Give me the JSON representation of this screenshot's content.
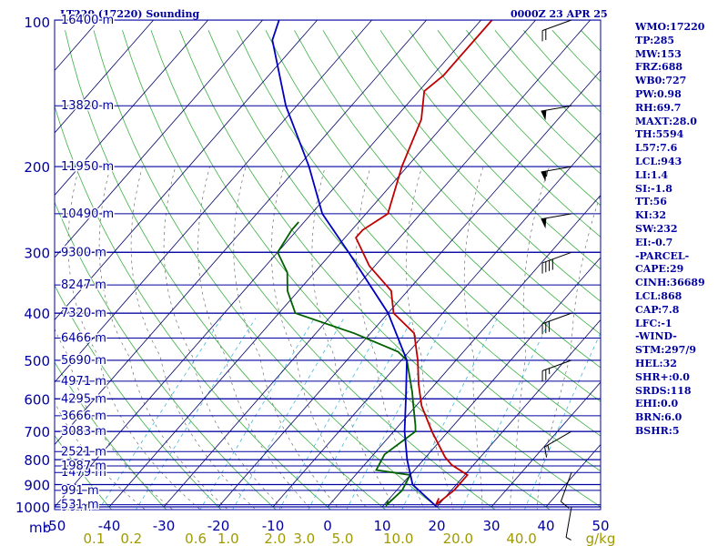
{
  "header": {
    "station": "LT220 (17220) Sounding",
    "time": "0000Z 23 APR 25"
  },
  "stats": [
    "WMO:17220",
    "TP:285",
    "MW:153",
    "FRZ:688",
    "WB0:727",
    "PW:0.98",
    "RH:69.7",
    "MAXT:28.0",
    "TH:5594",
    "L57:7.6",
    "LCL:943",
    "LI:1.4",
    "SI:-1.8",
    "TT:56",
    "KI:32",
    "SW:232",
    "EI:-0.7",
    "-PARCEL-",
    "CAPE:29",
    "CINH:36689",
    "LCL:868",
    "CAP:7.8",
    "LFC:-1",
    "-WIND-",
    "STM:297/9",
    "HEL:32",
    "SHR+:0.0",
    "SRDS:118",
    "EHI:0.0",
    "BRN:6.0",
    "BSHR:5"
  ],
  "colors": {
    "temperature": "#c00000",
    "dewpoint": "#006000",
    "parcel": "#0000c0",
    "isobar": "#0000a0",
    "isotherm": "#00006a",
    "dry_adiabat": "#3cb043",
    "mixing_ratio": "#40b8e0",
    "moist_adiabat": "#707070",
    "axis_text": "#0000a0",
    "mixing_ratio_text": "#a09a00"
  },
  "chart_data": {
    "type": "line",
    "chart_kind": "skew-T log-P sounding",
    "pressure_axis": {
      "unit_label": "mb",
      "scale": "log",
      "range": [
        1000,
        100
      ],
      "ticks": [
        100,
        200,
        300,
        400,
        500,
        600,
        700,
        800,
        900,
        1000
      ]
    },
    "temperature_axis": {
      "range": [
        -50,
        50
      ],
      "tick_labels": [
        "-50",
        "-40",
        "-30",
        "-20",
        "-10",
        "0",
        "10",
        "20",
        "30",
        "40",
        "50"
      ]
    },
    "mixing_ratio_axis": {
      "unit_label": "g/kg",
      "tick_labels": [
        "0.1",
        "0.2",
        "0.6",
        "1.0",
        "2.0",
        "3.0",
        "5.0",
        "10.0",
        "20.0",
        "40.0"
      ],
      "values": [
        0.1,
        0.2,
        0.6,
        1.0,
        2.0,
        3.0,
        5.0,
        10.0,
        20.0,
        40.0
      ]
    },
    "height_labels": [
      {
        "p": 1000,
        "label": "96 m"
      },
      {
        "p": 990,
        "label": "531 m"
      },
      {
        "p": 925,
        "label": "991 m"
      },
      {
        "p": 850,
        "label": "1479 m"
      },
      {
        "p": 824,
        "label": "1987 m"
      },
      {
        "p": 770,
        "label": "2521 m"
      },
      {
        "p": 700,
        "label": "3083 m"
      },
      {
        "p": 650,
        "label": "3666 m"
      },
      {
        "p": 600,
        "label": "4295 m"
      },
      {
        "p": 552,
        "label": "4971 m"
      },
      {
        "p": 500,
        "label": "5690 m"
      },
      {
        "p": 450,
        "label": "6466 m"
      },
      {
        "p": 400,
        "label": "7320 m"
      },
      {
        "p": 350,
        "label": "8247 m"
      },
      {
        "p": 300,
        "label": "9300 m"
      },
      {
        "p": 250,
        "label": "10490 m"
      },
      {
        "p": 200,
        "label": "11950 m"
      },
      {
        "p": 150,
        "label": "13820 m"
      },
      {
        "p": 100,
        "label": "16400 m"
      }
    ],
    "series": [
      {
        "name": "",
        "kind": "temperature",
        "points": [
          [
            960,
            19
          ],
          [
            990,
            19.5
          ],
          [
            925,
            20.5
          ],
          [
            860,
            20.5
          ],
          [
            820,
            16
          ],
          [
            790,
            13.5
          ],
          [
            700,
            7
          ],
          [
            620,
            1
          ],
          [
            560,
            -3
          ],
          [
            500,
            -7
          ],
          [
            440,
            -12
          ],
          [
            400,
            -19
          ],
          [
            360,
            -23
          ],
          [
            320,
            -31
          ],
          [
            280,
            -38
          ],
          [
            270,
            -38
          ],
          [
            250,
            -36
          ],
          [
            200,
            -41
          ],
          [
            160,
            -45
          ],
          [
            140,
            -49
          ],
          [
            130,
            -48
          ],
          [
            110,
            -48
          ],
          [
            100,
            -48
          ]
        ]
      },
      {
        "name": "",
        "kind": "dewpoint",
        "points": [
          [
            970,
            10
          ],
          [
            990,
            10.5
          ],
          [
            925,
            11
          ],
          [
            860,
            10
          ],
          [
            840,
            3
          ],
          [
            780,
            2
          ],
          [
            700,
            4
          ],
          [
            680,
            3
          ],
          [
            620,
            -0.5
          ],
          [
            580,
            -3
          ],
          [
            500,
            -9
          ],
          [
            480,
            -12
          ],
          [
            440,
            -23
          ],
          [
            400,
            -37
          ],
          [
            360,
            -42
          ],
          [
            330,
            -45
          ],
          [
            300,
            -50
          ],
          [
            270,
            -51
          ],
          [
            260,
            -51
          ]
        ]
      },
      {
        "name": "",
        "kind": "parcel",
        "points": [
          [
            1000,
            20
          ],
          [
            900,
            12
          ],
          [
            800,
            7
          ],
          [
            700,
            2
          ],
          [
            600,
            -3
          ],
          [
            500,
            -9
          ],
          [
            400,
            -20
          ],
          [
            300,
            -37
          ],
          [
            250,
            -48
          ],
          [
            200,
            -58
          ],
          [
            150,
            -72
          ],
          [
            110,
            -85
          ],
          [
            100,
            -87
          ]
        ]
      }
    ],
    "wind_barbs": [
      {
        "p": 1000,
        "dir": 190,
        "kt": 5
      },
      {
        "p": 850,
        "dir": 200,
        "kt": 10
      },
      {
        "p": 700,
        "dir": 240,
        "kt": 15
      },
      {
        "p": 500,
        "dir": 250,
        "kt": 25
      },
      {
        "p": 400,
        "dir": 250,
        "kt": 30
      },
      {
        "p": 300,
        "dir": 250,
        "kt": 40
      },
      {
        "p": 250,
        "dir": 260,
        "kt": 50
      },
      {
        "p": 200,
        "dir": 260,
        "kt": 55
      },
      {
        "p": 150,
        "dir": 260,
        "kt": 50
      },
      {
        "p": 100,
        "dir": 250,
        "kt": 20
      }
    ],
    "grid": true
  }
}
